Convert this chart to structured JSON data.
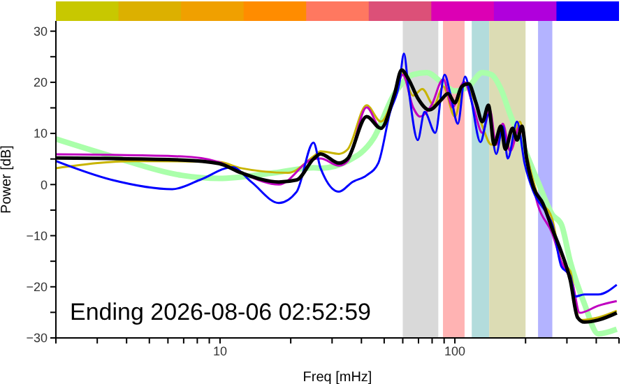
{
  "chart_data": {
    "type": "line",
    "xlabel": "Freq [mHz]",
    "ylabel": "Power [dB]",
    "log": "x",
    "xlim": [
      2,
      500
    ],
    "ylim": [
      -30,
      32
    ],
    "xticks": [
      {
        "value": 2,
        "label": null
      },
      {
        "value": 3,
        "label": null
      },
      {
        "value": 4,
        "label": null
      },
      {
        "value": 5,
        "label": null
      },
      {
        "value": 6,
        "label": null
      },
      {
        "value": 7,
        "label": null
      },
      {
        "value": 8,
        "label": null
      },
      {
        "value": 9,
        "label": null
      },
      10,
      {
        "value": 20,
        "label": null
      },
      {
        "value": 30,
        "label": null
      },
      {
        "value": 40,
        "label": null
      },
      {
        "value": 50,
        "label": null
      },
      {
        "value": 60,
        "label": null
      },
      {
        "value": 70,
        "label": null
      },
      {
        "value": 80,
        "label": null
      },
      {
        "value": 90,
        "label": null
      },
      100,
      {
        "value": 200,
        "label": null
      },
      {
        "value": 300,
        "label": null
      },
      {
        "value": 400,
        "label": null
      },
      {
        "value": 500,
        "label": null
      }
    ],
    "yticks": [
      {
        "value": -30,
        "label": "−30"
      },
      {
        "value": -25,
        "label": null
      },
      {
        "value": -20,
        "label": "−20"
      },
      {
        "value": -15,
        "label": null
      },
      {
        "value": -10,
        "label": "−10"
      },
      {
        "value": -5,
        "label": null
      },
      0,
      {
        "value": 5,
        "label": null
      },
      10,
      {
        "value": 15,
        "label": null
      },
      20,
      {
        "value": 25,
        "label": null
      },
      30
    ],
    "marker": "none",
    "line_style": "solid",
    "bands": [
      {
        "axis": "x",
        "from": 60,
        "to": 85,
        "color": "#d9d9d9"
      },
      {
        "axis": "x",
        "from": 89,
        "to": 110,
        "color": "#ffb3b3"
      },
      {
        "axis": "x",
        "from": 118,
        "to": 140,
        "color": "#b3dcdc"
      },
      {
        "axis": "x",
        "from": 140,
        "to": 200,
        "color": "#dcdcb4"
      },
      {
        "axis": "x",
        "from": 226,
        "to": 260,
        "color": "#b3b3ff"
      }
    ],
    "annotations": [
      "Ending 2026-08-06 02:52:59"
    ],
    "series": [
      {
        "color": "#aaffaa",
        "x": [
          2,
          3.47,
          6.86,
          9.9,
          17,
          25,
          26.8,
          35,
          45,
          55.4,
          66.4,
          76,
          87.2,
          100,
          114.5,
          131,
          143,
          157,
          172,
          198,
          226,
          260,
          284,
          310,
          356,
          408,
          489
        ],
        "values": [
          8.9,
          5.5,
          1.8,
          1.2,
          2.3,
          3.3,
          3.2,
          4.6,
          9.0,
          17.8,
          21.5,
          21.9,
          20.1,
          18.3,
          19.2,
          21.9,
          21.5,
          18.7,
          13.7,
          6.9,
          0.5,
          -5.9,
          -7.8,
          -15.1,
          -23.3,
          -29.2,
          -28.3
        ]
      },
      {
        "color": "#c8b400",
        "x": [
          2,
          4.35,
          9.9,
          12.3,
          19.5,
          25,
          26.8,
          32.1,
          35,
          42.1,
          48.4,
          55.4,
          59.3,
          66.4,
          72.7,
          81.4,
          89.2,
          100,
          109.5,
          120,
          131,
          143,
          160,
          172,
          189,
          202,
          226,
          260,
          284,
          310,
          340,
          408,
          489
        ],
        "values": [
          3.2,
          4.6,
          4.4,
          3.2,
          2.3,
          5.5,
          6.5,
          6.0,
          6.9,
          15.5,
          12.3,
          17.8,
          21.9,
          17.4,
          18.7,
          15.5,
          19.2,
          13.3,
          19.7,
          16.9,
          11.4,
          7.8,
          11.0,
          6.9,
          12.3,
          6.0,
          -2.3,
          -6.8,
          -15.1,
          -16.9,
          -26.5,
          -26.0,
          -24.7
        ]
      },
      {
        "color": "#c000c0",
        "x": [
          2,
          6.86,
          9.9,
          12.3,
          17.8,
          25,
          26.8,
          32.1,
          35,
          42.1,
          48.4,
          55.4,
          60,
          66.4,
          71,
          79.5,
          89.2,
          97.8,
          109.5,
          120,
          131,
          141,
          150,
          160,
          172,
          189,
          207,
          226,
          260,
          284,
          318,
          340,
          408,
          489
        ],
        "values": [
          5.9,
          5.5,
          4.4,
          2.3,
          0,
          5.0,
          5.1,
          3.7,
          4.6,
          15.1,
          11.0,
          16.9,
          21.5,
          15.1,
          13.3,
          15.5,
          20.6,
          15.1,
          20.1,
          15.1,
          10.1,
          14.6,
          7.8,
          11.9,
          6.5,
          11.4,
          3.2,
          -4.1,
          -9.6,
          -15.1,
          -19.6,
          -25.1,
          -23.7,
          -22.8
        ]
      },
      {
        "color": "#0000ff",
        "x": [
          2,
          3.47,
          6.26,
          8.2,
          11.3,
          13.6,
          17.8,
          21.2,
          25,
          26.8,
          32.1,
          36.6,
          42.1,
          47.2,
          53,
          58,
          60.7,
          63.5,
          69.5,
          74.3,
          82.5,
          90.4,
          95.6,
          103,
          110.5,
          117,
          128.5,
          139,
          150,
          160,
          168,
          184,
          198,
          216,
          248,
          260,
          284,
          310,
          325,
          356,
          408,
          489
        ],
        "values": [
          4.6,
          0.9,
          -0.9,
          0.9,
          3.4,
          0.5,
          -3.6,
          -1.4,
          8.2,
          3.2,
          -1.4,
          0.5,
          1.8,
          4.2,
          14.2,
          19.7,
          25.6,
          18.7,
          8.7,
          14.2,
          10.1,
          21.5,
          17.8,
          11.9,
          21.1,
          16.9,
          8.3,
          13.7,
          6.0,
          11.4,
          5.1,
          12.3,
          4.2,
          -1.4,
          -5.9,
          -7.8,
          -16.0,
          -17.8,
          -21.9,
          -21.5,
          -21.5,
          -19.6
        ]
      },
      {
        "color": "#000000",
        "x": [
          2,
          6.86,
          9.9,
          12.3,
          17.8,
          21.2,
          25,
          26.8,
          32.1,
          35,
          42.1,
          48.4,
          55.4,
          59.3,
          63.5,
          69.5,
          77.8,
          87.2,
          93.5,
          100,
          107,
          114.5,
          123,
          131,
          139,
          147,
          157,
          164,
          176,
          184,
          193,
          202,
          216,
          237,
          260,
          284,
          310,
          333,
          356,
          408,
          489
        ],
        "values": [
          5.2,
          4.8,
          4.1,
          2.3,
          0.5,
          0.9,
          5.0,
          6.0,
          4.2,
          5.1,
          13.3,
          11.0,
          17.8,
          22.4,
          20.6,
          16.9,
          14.6,
          16.5,
          17.8,
          16.0,
          19.2,
          19.7,
          16.0,
          12.3,
          15.5,
          7.8,
          11.4,
          6.9,
          11.0,
          8.7,
          11.4,
          5.1,
          -0.5,
          -3.7,
          -8.7,
          -13.2,
          -18.7,
          -26.0,
          -26.9,
          -26.5,
          -25.1
        ]
      }
    ]
  }
}
